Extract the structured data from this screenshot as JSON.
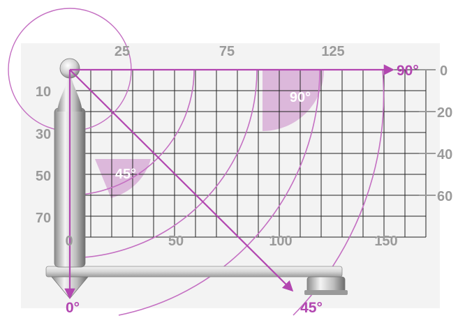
{
  "colors": {
    "accent": "#b246b0",
    "wedge": "#dcb8db",
    "grid": "#222222",
    "label": "#9a9a9a"
  },
  "labels": {
    "top": [
      "25",
      "75",
      "125"
    ],
    "bottom": [
      "0",
      "50",
      "100",
      "150"
    ],
    "left": [
      "10",
      "30",
      "50",
      "70"
    ],
    "right": [
      "0",
      "20",
      "40",
      "60"
    ]
  },
  "angles": {
    "zero": "0°",
    "forty_five": "45°",
    "ninety": "90°",
    "wedge_45": "45°",
    "wedge_90": "90°"
  }
}
